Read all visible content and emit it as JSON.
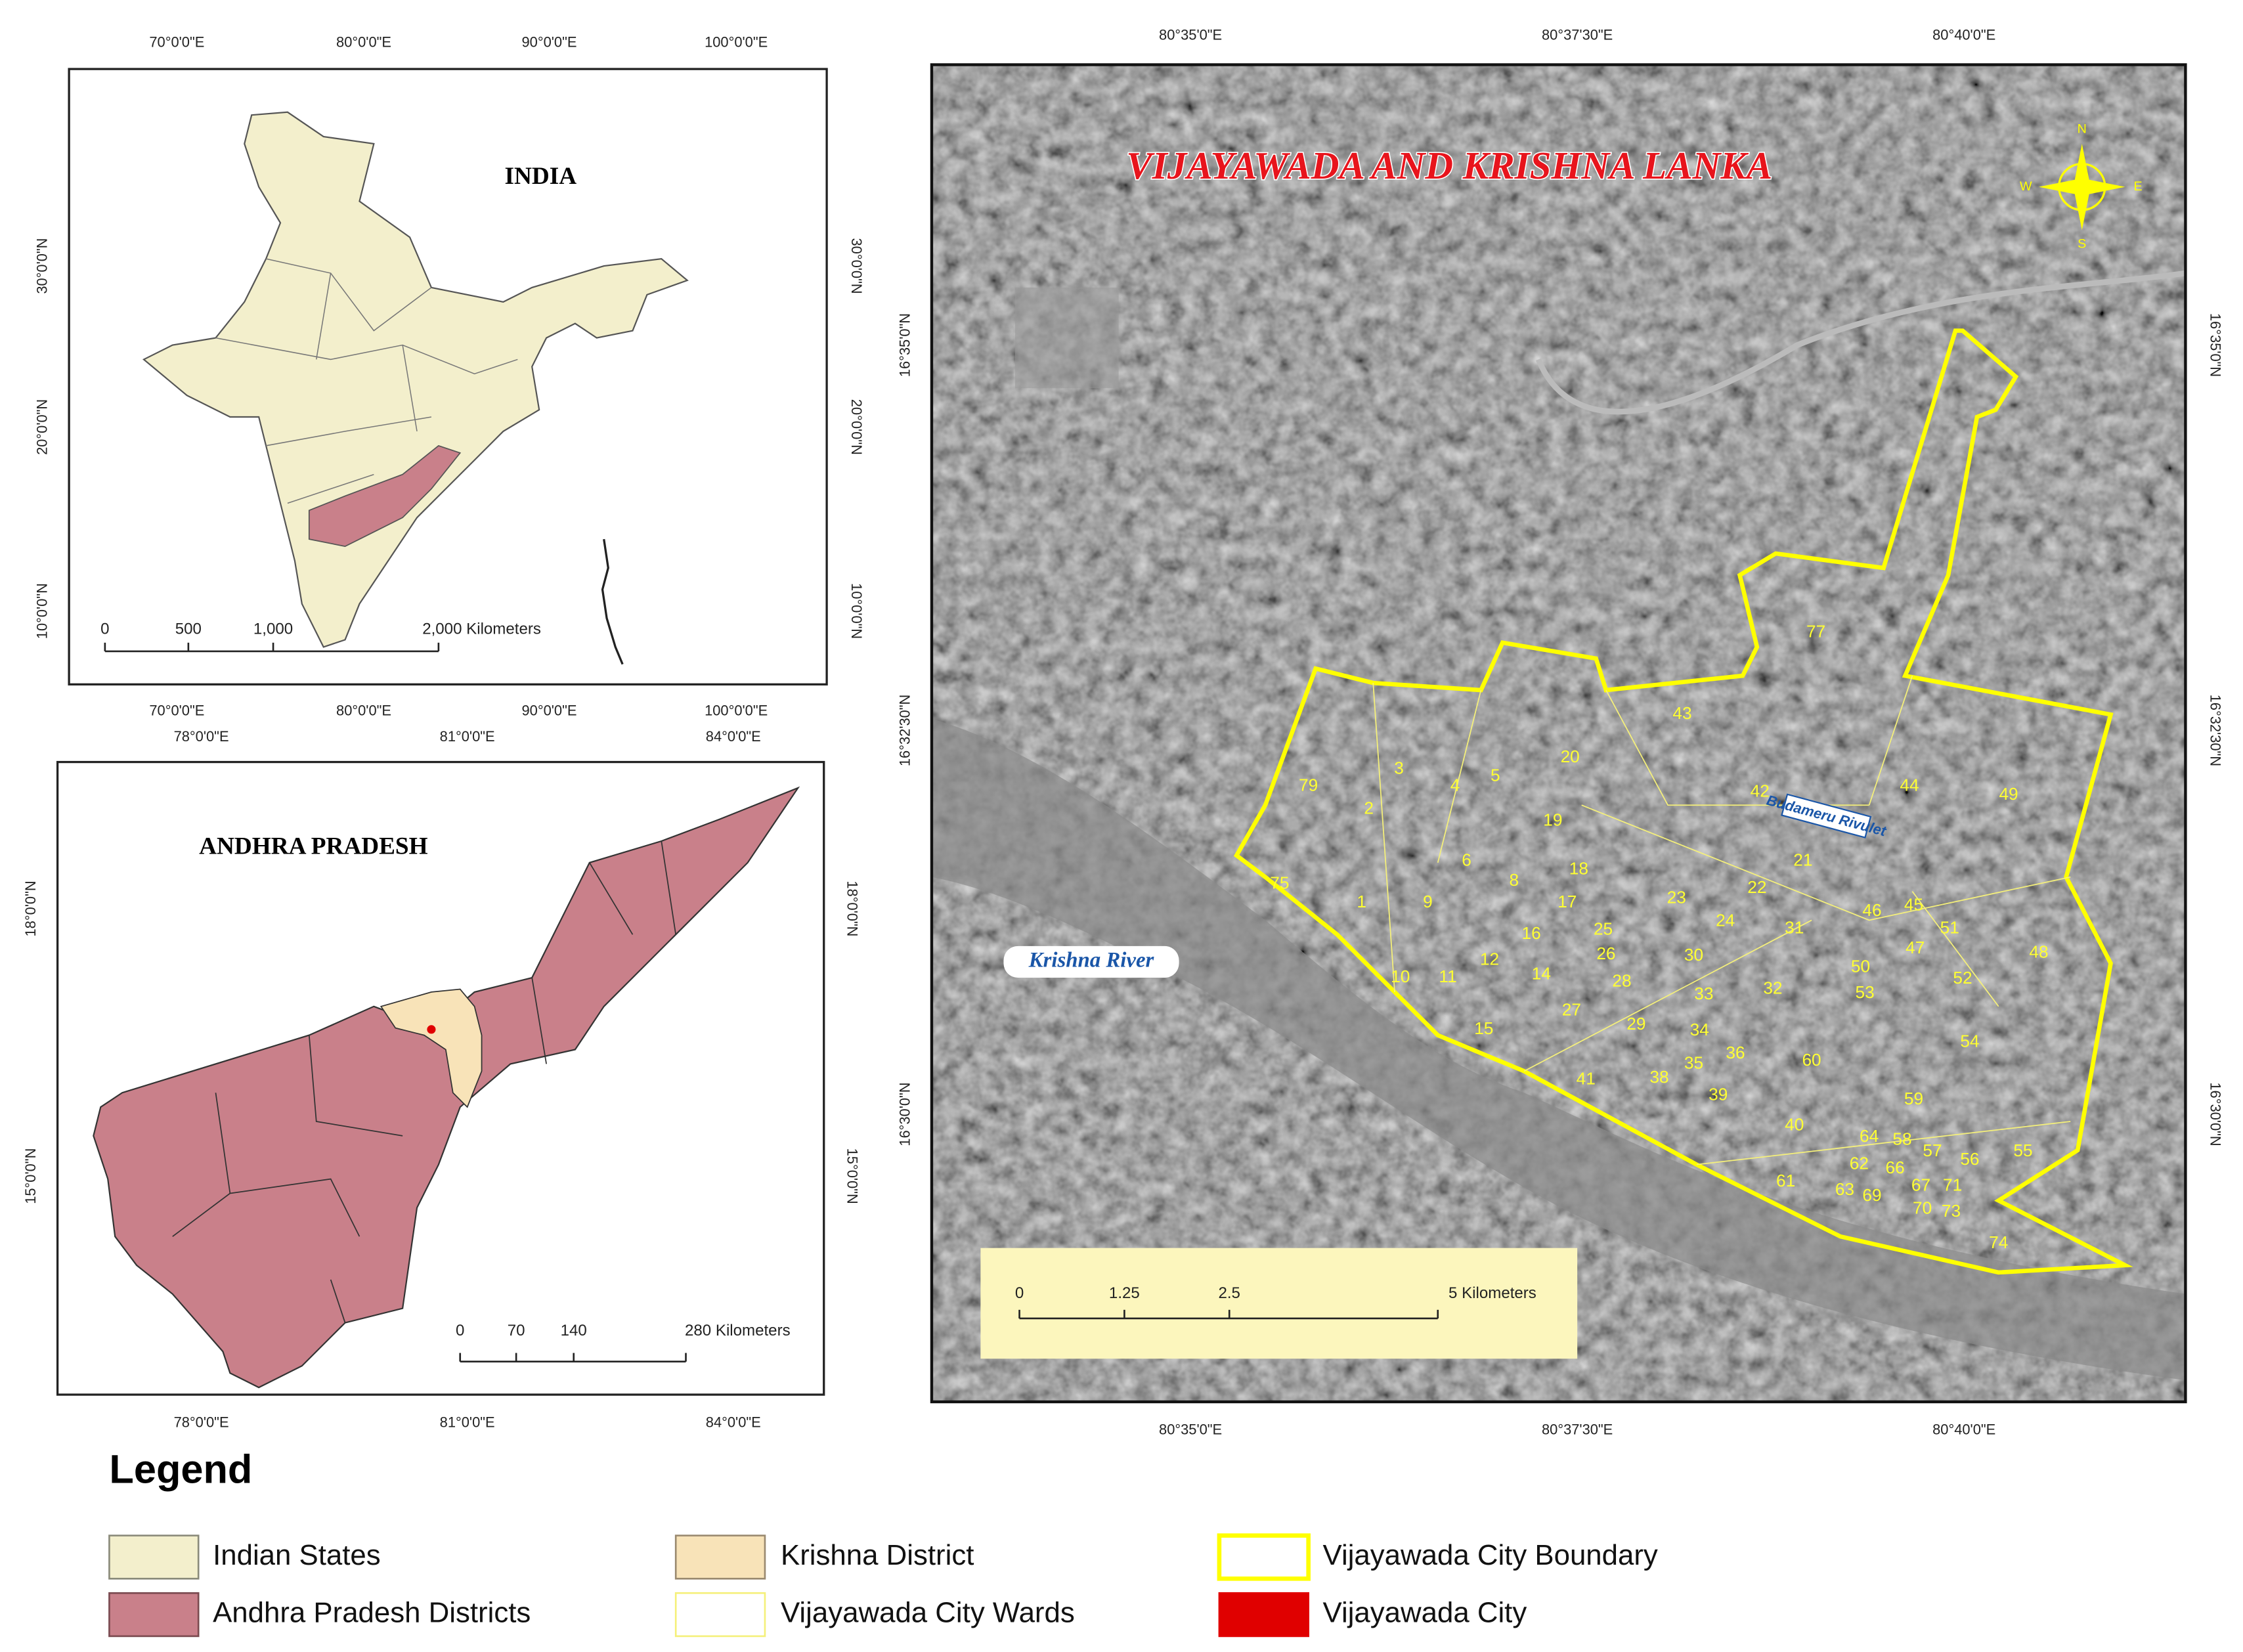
{
  "india_map": {
    "title": "INDIA",
    "lon_ticks": [
      "70°0'0\"E",
      "80°0'0\"E",
      "90°0'0\"E",
      "100°0'0\"E"
    ],
    "lat_ticks": [
      "30°0'0\"N",
      "20°0'0\"N",
      "10°0'0\"N"
    ],
    "scale_bar": [
      "0",
      "500",
      "1,000",
      "2,000 Kilometers"
    ]
  },
  "ap_map": {
    "title": "ANDHRA PRADESH",
    "lon_ticks": [
      "78°0'0\"E",
      "81°0'0\"E",
      "84°0'0\"E"
    ],
    "lat_ticks": [
      "18°0'0\"N",
      "15°0'0\"N"
    ],
    "scale_bar": [
      "0",
      "70",
      "140",
      "280 Kilometers"
    ]
  },
  "city_map": {
    "title": "VIJAYAWADA AND KRISHNA LANKA",
    "lon_ticks": [
      "80°35'0\"E",
      "80°37'30\"E",
      "80°40'0\"E"
    ],
    "lat_ticks": [
      "16°35'0\"N",
      "16°32'30\"N",
      "16°30'0\"N"
    ],
    "river": "Krishna River",
    "rivulet": "Budameru Rivulet",
    "compass": [
      "N",
      "S",
      "E",
      "W"
    ],
    "scale_bar": [
      "0",
      "1.25",
      "2.5",
      "5 Kilometers"
    ],
    "ward_labels": [
      "79",
      "3",
      "2",
      "4",
      "5",
      "20",
      "43",
      "77",
      "42",
      "44",
      "49",
      "19",
      "75",
      "1",
      "6",
      "8",
      "9",
      "18",
      "17",
      "22",
      "21",
      "23",
      "46",
      "45",
      "51",
      "48",
      "16",
      "12",
      "25",
      "26",
      "24",
      "31",
      "47",
      "50",
      "52",
      "10",
      "11",
      "14",
      "28",
      "30",
      "33",
      "32",
      "53",
      "27",
      "15",
      "29",
      "34",
      "35",
      "36",
      "54",
      "60",
      "41",
      "38",
      "39",
      "59",
      "40",
      "64",
      "58",
      "57",
      "56",
      "55",
      "62",
      "66",
      "61",
      "63",
      "69",
      "67",
      "71",
      "70",
      "73",
      "74"
    ]
  },
  "legend": {
    "title": "Legend",
    "items": [
      {
        "label": "Indian States",
        "fill": "#f3efcc",
        "stroke": "#8a8a7a"
      },
      {
        "label": "Andhra Pradesh Districts",
        "fill": "#c9808a",
        "stroke": "#7a4a50"
      },
      {
        "label": "Krishna District",
        "fill": "#f8e3b8",
        "stroke": "#9a8a70"
      },
      {
        "label": "Vijayawada City Wards",
        "fill": "#ffffff",
        "stroke": "#f5f07a"
      },
      {
        "label": "Vijayawada City Boundary",
        "fill": "#ffffff",
        "stroke": "#ffff00"
      },
      {
        "label": "Vijayawada City",
        "fill": "#e00000",
        "stroke": "#e00000"
      }
    ]
  }
}
